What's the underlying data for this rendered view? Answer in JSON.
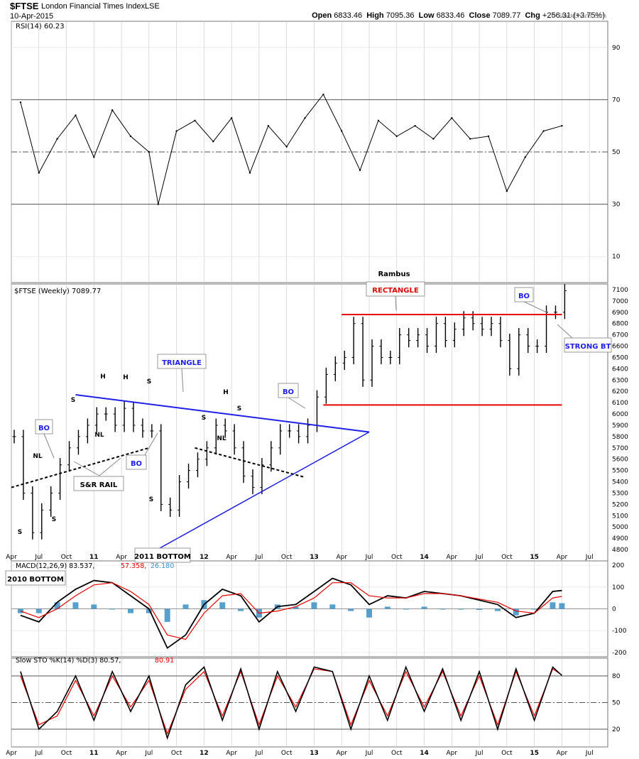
{
  "header": {
    "symbol": "$FTSE",
    "name": "London Financial Times Index",
    "exchange": "LSE",
    "date": "10-Apr-2015",
    "open_label": "Open",
    "open": "6833.46",
    "high_label": "High",
    "high": "7095.36",
    "low_label": "Low",
    "low": "6833.46",
    "close_label": "Close",
    "close": "7089.77",
    "chg_label": "Chg",
    "chg": "+256.31 (+3.75%)",
    "watermark": "© StockCharts.com"
  },
  "colors": {
    "background": "#ffffff",
    "grid": "#c8c8c8",
    "price_bars": "#000000",
    "trendlines": "#1f1fe6",
    "rectangle_lines": "#e60000",
    "macd_line": "#000000",
    "macd_signal": "#e60000",
    "macd_histogram": "#3a8fc4",
    "sto_k": "#000000",
    "sto_d": "#e60000"
  },
  "chart_data": [
    {
      "type": "line",
      "panel": "rsi",
      "title": "RSI(14) 60.23",
      "ylim": [
        0,
        100
      ],
      "y_ticks": [
        "90",
        "70",
        "50",
        "30",
        "10"
      ],
      "reference_lines": [
        70,
        50,
        30
      ],
      "x_tick_labels": [
        "Apr",
        "Jul",
        "Oct",
        "11",
        "Apr",
        "Jul",
        "Oct",
        "12",
        "Apr",
        "Jul",
        "Oct",
        "13",
        "Apr",
        "Jul",
        "Oct",
        "14",
        "Apr",
        "Jul",
        "Oct",
        "15",
        "Apr",
        "Jul"
      ],
      "x": [
        "2010-05",
        "2010-07",
        "2010-09",
        "2010-11",
        "2011-01",
        "2011-03",
        "2011-05",
        "2011-07",
        "2011-08",
        "2011-10",
        "2011-12",
        "2012-02",
        "2012-04",
        "2012-06",
        "2012-08",
        "2012-10",
        "2012-12",
        "2013-02",
        "2013-04",
        "2013-06",
        "2013-08",
        "2013-10",
        "2013-12",
        "2014-02",
        "2014-04",
        "2014-06",
        "2014-08",
        "2014-10",
        "2014-12",
        "2015-02",
        "2015-04"
      ],
      "values": [
        69,
        42,
        55,
        64,
        48,
        66,
        56,
        50,
        30,
        58,
        62,
        54,
        63,
        42,
        60,
        52,
        63,
        72,
        58,
        43,
        62,
        56,
        60,
        55,
        63,
        55,
        56,
        35,
        48,
        58,
        60
      ]
    },
    {
      "type": "bar",
      "panel": "price",
      "title": "$FTSE (Weekly) 7089.77",
      "ylim": [
        4700,
        7150
      ],
      "y_ticks": [
        "7100",
        "7000",
        "6900",
        "6800",
        "6700",
        "6600",
        "6500",
        "6400",
        "6300",
        "6200",
        "6100",
        "6000",
        "5900",
        "5800",
        "5700",
        "5600",
        "5500",
        "5400",
        "5300",
        "5200",
        "5100",
        "5000",
        "4900",
        "4800"
      ],
      "x": [
        "2010-04",
        "2010-05",
        "2010-06",
        "2010-07",
        "2010-08",
        "2010-09",
        "2010-10",
        "2010-11",
        "2010-12",
        "2011-01",
        "2011-02",
        "2011-03",
        "2011-04",
        "2011-05",
        "2011-06",
        "2011-07",
        "2011-08",
        "2011-09",
        "2011-10",
        "2011-11",
        "2011-12",
        "2012-01",
        "2012-02",
        "2012-03",
        "2012-04",
        "2012-05",
        "2012-06",
        "2012-07",
        "2012-08",
        "2012-09",
        "2012-10",
        "2012-11",
        "2012-12",
        "2013-01",
        "2013-02",
        "2013-03",
        "2013-04",
        "2013-05",
        "2013-06",
        "2013-07",
        "2013-08",
        "2013-09",
        "2013-10",
        "2013-11",
        "2013-12",
        "2014-01",
        "2014-02",
        "2014-03",
        "2014-04",
        "2014-05",
        "2014-06",
        "2014-07",
        "2014-08",
        "2014-09",
        "2014-10",
        "2014-11",
        "2014-12",
        "2015-01",
        "2015-02",
        "2015-03",
        "2015-04"
      ],
      "values": [
        5800,
        5300,
        4950,
        5150,
        5300,
        5550,
        5700,
        5800,
        5900,
        6000,
        6000,
        5900,
        6050,
        5900,
        5850,
        5850,
        5200,
        5150,
        5400,
        5500,
        5600,
        5700,
        5900,
        5850,
        5700,
        5450,
        5350,
        5550,
        5700,
        5850,
        5850,
        5800,
        5900,
        6150,
        6350,
        6450,
        6500,
        6800,
        6300,
        6600,
        6500,
        6500,
        6700,
        6650,
        6700,
        6600,
        6800,
        6650,
        6750,
        6850,
        6800,
        6750,
        6800,
        6650,
        6400,
        6700,
        6600,
        6600,
        6900,
        6900,
        7090
      ],
      "annotations": {
        "top_label": "Rambus",
        "patterns": [
          "RECTANGLE",
          "TRIANGLE"
        ],
        "notes": [
          "BO",
          "BO",
          "BO",
          "BO",
          "S&R RAIL",
          "STRONG BT",
          "2011 BOTTOM",
          "2010 BOTTOM"
        ],
        "hs_letters": [
          "H",
          "H",
          "S",
          "S",
          "NL",
          "NL",
          "S",
          "S",
          "S",
          "H",
          "S",
          "NL"
        ]
      }
    },
    {
      "type": "line",
      "panel": "macd",
      "title": "MACD(12,26,9) 83.537, 57.358, 26.180",
      "legend_values": [
        "MACD(12,26,9) 83.537",
        "57.358",
        "26.180"
      ],
      "ylim": [
        -220,
        220
      ],
      "y_ticks": [
        "200",
        "100",
        "0",
        "-100",
        "-200"
      ],
      "x": [
        "2010-05",
        "2010-07",
        "2010-09",
        "2010-11",
        "2011-01",
        "2011-03",
        "2011-05",
        "2011-07",
        "2011-09",
        "2011-11",
        "2012-01",
        "2012-03",
        "2012-05",
        "2012-07",
        "2012-09",
        "2012-11",
        "2013-01",
        "2013-03",
        "2013-05",
        "2013-07",
        "2013-09",
        "2013-11",
        "2014-01",
        "2014-03",
        "2014-05",
        "2014-07",
        "2014-09",
        "2014-11",
        "2015-01",
        "2015-03",
        "2015-04"
      ],
      "series": [
        {
          "name": "MACD(12,26,9) 83.537",
          "values": [
            -30,
            -60,
            30,
            90,
            130,
            120,
            60,
            0,
            -180,
            -120,
            20,
            90,
            60,
            -60,
            10,
            20,
            80,
            140,
            110,
            20,
            60,
            50,
            80,
            70,
            60,
            40,
            20,
            -40,
            -20,
            80,
            84
          ]
        },
        {
          "name": "57.358",
          "values": [
            -10,
            -40,
            0,
            60,
            110,
            120,
            80,
            20,
            -120,
            -140,
            -20,
            60,
            70,
            -20,
            -10,
            10,
            50,
            120,
            120,
            60,
            50,
            50,
            70,
            70,
            60,
            45,
            30,
            -10,
            -20,
            50,
            57
          ]
        },
        {
          "name": "26.180",
          "values": [
            -20,
            -20,
            30,
            30,
            20,
            0,
            -20,
            -20,
            -60,
            20,
            40,
            30,
            -10,
            -40,
            20,
            10,
            30,
            20,
            -10,
            -40,
            10,
            0,
            10,
            0,
            0,
            -5,
            -10,
            -30,
            0,
            30,
            26
          ]
        }
      ]
    },
    {
      "type": "line",
      "panel": "sto",
      "title": "Slow STO %K(14) %D(3) 80.57, 80.91",
      "legend_values": [
        "Slow STO %K(14) %D(3) 80.57",
        "80.91"
      ],
      "ylim": [
        0,
        100
      ],
      "y_ticks": [
        "80",
        "50",
        "20"
      ],
      "reference_lines": [
        80,
        50,
        20
      ],
      "x_tick_labels": [
        "Apr",
        "Jul",
        "Oct",
        "11",
        "Apr",
        "Jul",
        "Oct",
        "12",
        "Apr",
        "Jul",
        "Oct",
        "13",
        "Apr",
        "Jul",
        "Oct",
        "14",
        "Apr",
        "Jul",
        "Oct",
        "15",
        "Apr",
        "Jul"
      ],
      "x": [
        "2010-05",
        "2010-07",
        "2010-09",
        "2010-11",
        "2011-01",
        "2011-03",
        "2011-05",
        "2011-07",
        "2011-09",
        "2011-11",
        "2012-01",
        "2012-03",
        "2012-05",
        "2012-07",
        "2012-09",
        "2012-11",
        "2013-01",
        "2013-03",
        "2013-05",
        "2013-07",
        "2013-09",
        "2013-11",
        "2014-01",
        "2014-03",
        "2014-05",
        "2014-07",
        "2014-09",
        "2014-11",
        "2015-01",
        "2015-03",
        "2015-04"
      ],
      "series": [
        {
          "name": "Slow STO %K(14) %D(3) 80.57",
          "values": [
            85,
            20,
            40,
            80,
            30,
            85,
            40,
            80,
            10,
            70,
            90,
            30,
            88,
            20,
            85,
            40,
            90,
            85,
            20,
            80,
            30,
            90,
            40,
            88,
            30,
            85,
            20,
            88,
            30,
            90,
            80.57
          ]
        },
        {
          "name": "80.91",
          "values": [
            80,
            25,
            35,
            75,
            35,
            80,
            45,
            75,
            15,
            65,
            85,
            35,
            85,
            25,
            80,
            45,
            88,
            85,
            25,
            75,
            35,
            85,
            45,
            85,
            35,
            80,
            25,
            85,
            35,
            88,
            80.91
          ]
        }
      ]
    }
  ]
}
